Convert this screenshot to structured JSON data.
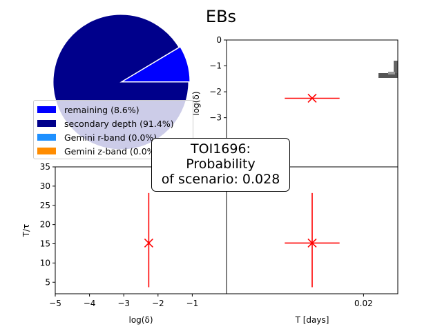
{
  "figure": {
    "title": "EBs"
  },
  "chart_data": [
    {
      "type": "pie",
      "slices": [
        {
          "label": "remaining (8.6%)",
          "value": 8.6,
          "color": "#0000ff"
        },
        {
          "label": "secondary depth (91.4%)",
          "value": 91.4,
          "color": "#00008b"
        },
        {
          "label": "Gemini r-band (0.0%)",
          "value": 0.0,
          "color": "#1e90ff"
        },
        {
          "label": "Gemini z-band (0.0%)",
          "value": 0.0,
          "color": "#ff8c00"
        }
      ]
    },
    {
      "type": "scatter",
      "name": "T vs log(delta)",
      "xlabel": "log(δ)",
      "ylabel": "T/τ",
      "xlim": [
        -5,
        0
      ],
      "ylim": [
        2,
        35
      ],
      "xticks": [
        "−5",
        "−4",
        "−3",
        "−2",
        "−1"
      ],
      "xtick_values": [
        -5,
        -4,
        -3,
        -2,
        -1
      ],
      "yticks": [
        "5",
        "10",
        "15",
        "20",
        "25",
        "30",
        "35"
      ],
      "ytick_values": [
        5,
        10,
        15,
        20,
        25,
        30,
        35
      ],
      "points": [
        {
          "x": -2.27,
          "y": 15.2,
          "yerr_low": 11.5,
          "yerr_high": 13.0
        }
      ]
    },
    {
      "type": "scatter",
      "name": "log(delta) vs T",
      "xlabel": "",
      "ylabel": "log(δ)",
      "xlim": [
        0.0,
        0.025
      ],
      "ylim": [
        -4.9,
        0
      ],
      "yticks": [
        "0",
        "−1",
        "−2",
        "−3"
      ],
      "ytick_values": [
        0,
        -1,
        -2,
        -3
      ],
      "points": [
        {
          "x": 0.0125,
          "y": -2.25,
          "xerr": 0.004
        }
      ],
      "heatmap_fragment": true
    },
    {
      "type": "scatter",
      "name": "T/tau vs T",
      "xlabel": "T [days]",
      "ylabel": "",
      "xlim": [
        0.0,
        0.025
      ],
      "ylim": [
        2,
        35
      ],
      "xticks": [
        "0.02"
      ],
      "xtick_values": [
        0.02
      ],
      "points": [
        {
          "x": 0.0125,
          "y": 15.2,
          "xerr": 0.004,
          "yerr_low": 11.5,
          "yerr_high": 13.0
        }
      ]
    }
  ],
  "annotation": {
    "line1": "TOI1696:",
    "line2": "Probability",
    "line3": "of scenario: 0.028"
  },
  "colors": {
    "marker": "#ff0000"
  }
}
